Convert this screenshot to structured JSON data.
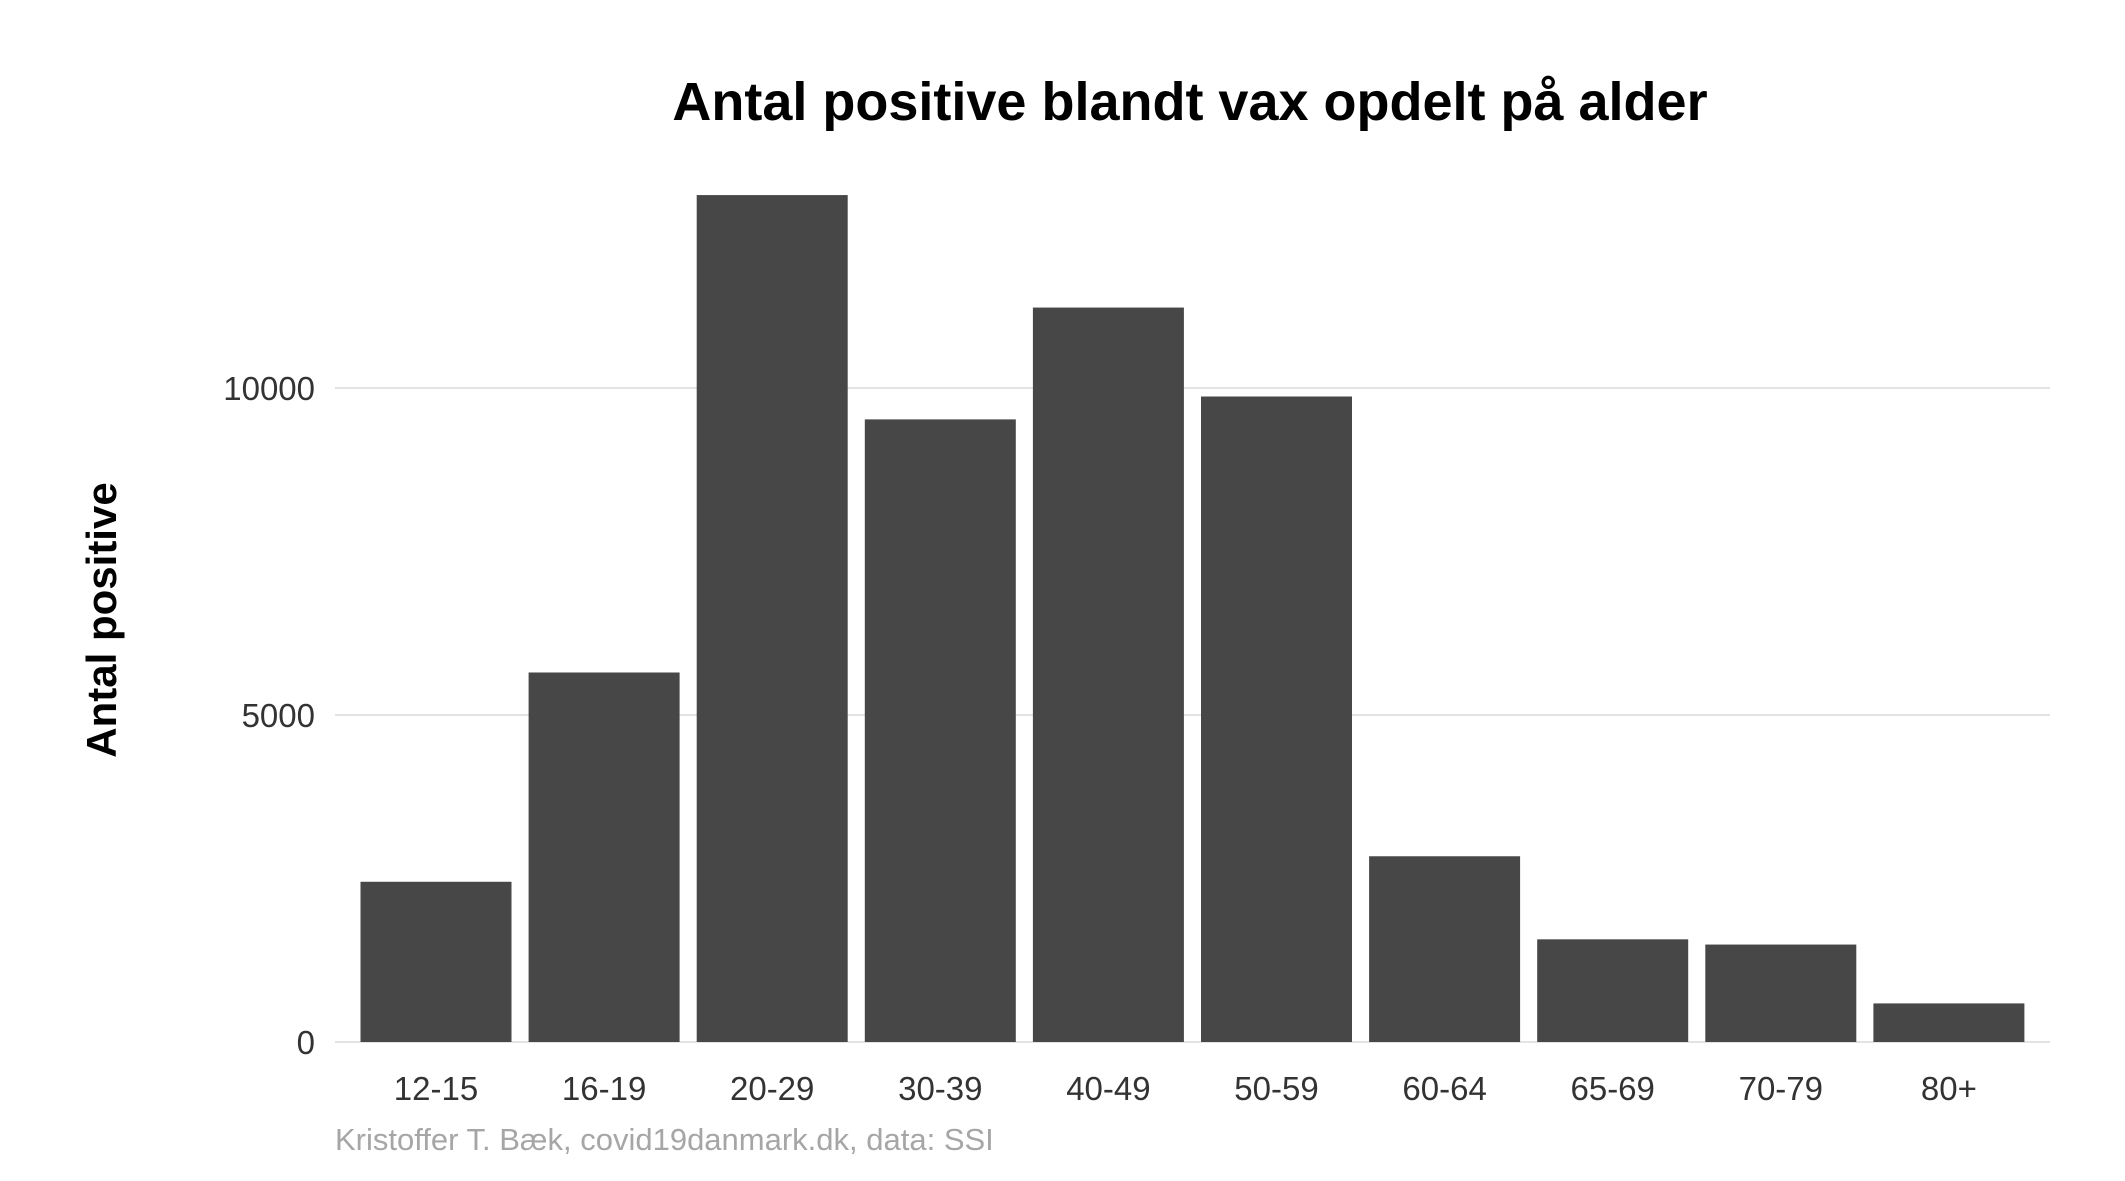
{
  "chart_data": {
    "type": "bar",
    "title": "Antal positive blandt vax opdelt på alder",
    "xlabel": "",
    "ylabel": "Antal positive",
    "categories": [
      "12-15",
      "16-19",
      "20-29",
      "30-39",
      "40-49",
      "50-59",
      "60-64",
      "65-69",
      "70-79",
      "80+"
    ],
    "values": [
      2450,
      5650,
      12950,
      9520,
      11230,
      9870,
      2840,
      1570,
      1490,
      590
    ],
    "ylim": [
      0,
      13000
    ],
    "yticks": [
      0,
      5000,
      10000
    ],
    "ytick_labels": [
      "0",
      "5000",
      "10000"
    ],
    "grid": true,
    "bar_color": "#474747",
    "caption": "Kristoffer T. Bæk, covid19danmark.dk, data: SSI"
  }
}
